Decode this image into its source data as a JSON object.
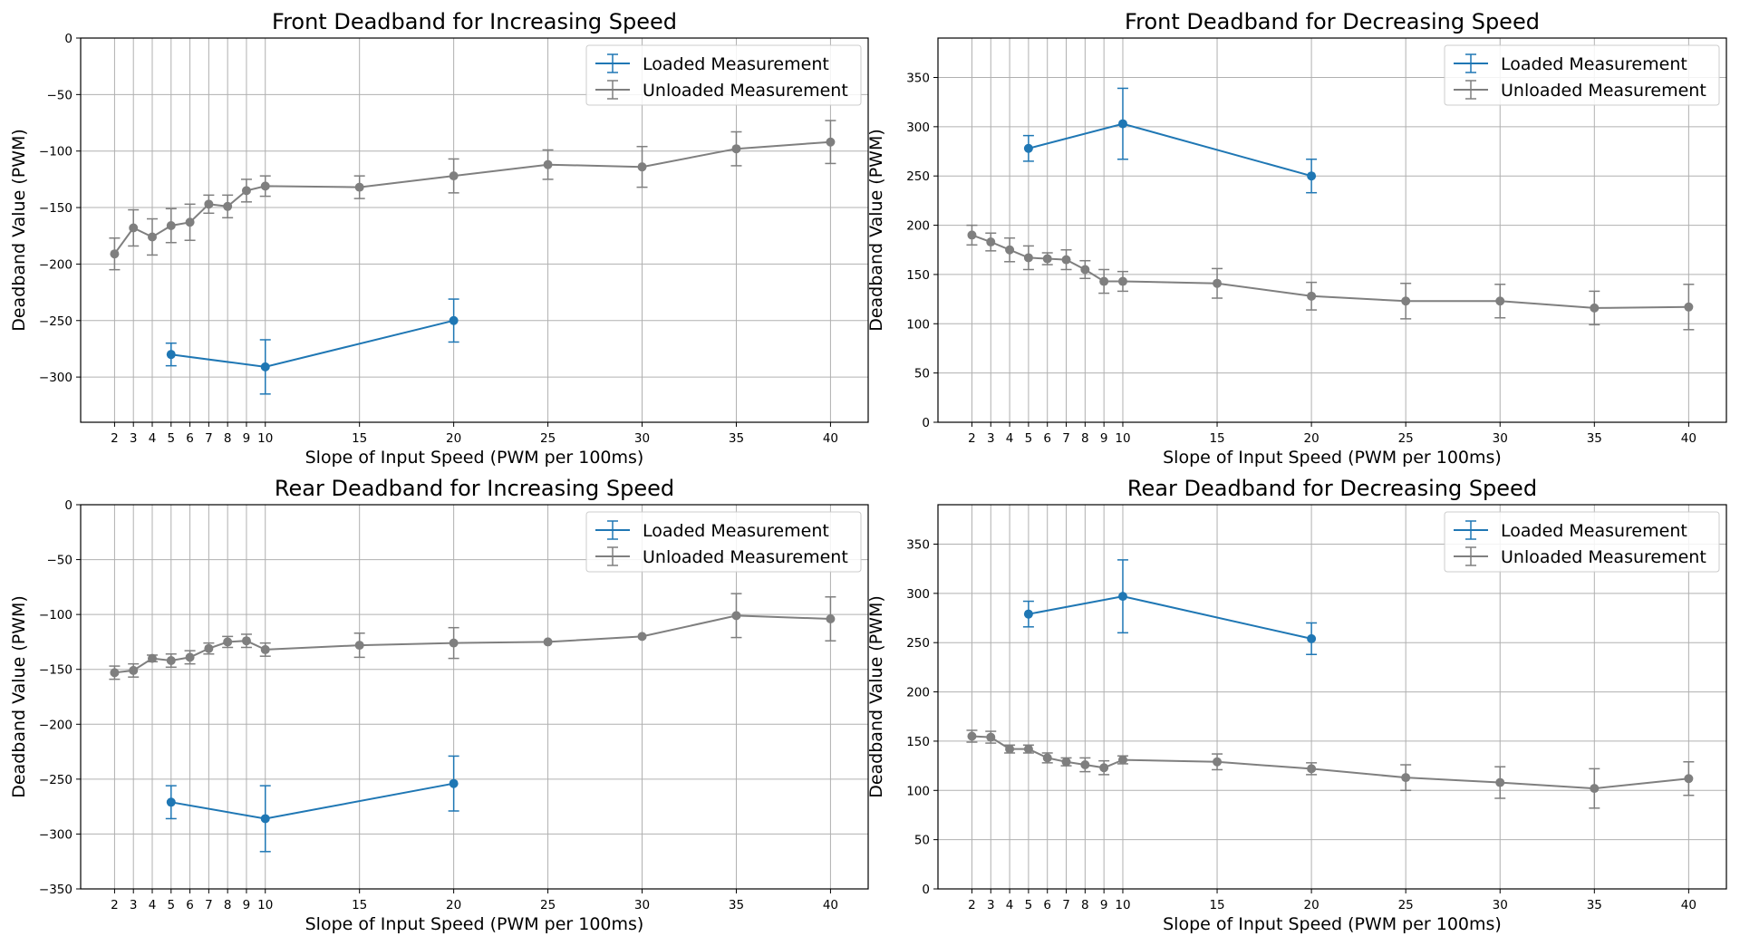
{
  "colors": {
    "loaded": "#1f77b4",
    "unloaded": "#7f7f7f",
    "grid": "#b0b0b0"
  },
  "chart_data": [
    {
      "type": "line",
      "title": "Front Deadband for Increasing Speed",
      "xlabel": "Slope of Input Speed (PWM per 100ms)",
      "ylabel": "Deadband Value (PWM)",
      "xticks": [
        2,
        3,
        4,
        5,
        6,
        7,
        8,
        9,
        10,
        15,
        20,
        25,
        30,
        35,
        40
      ],
      "yticks": [
        0,
        -50,
        -100,
        -150,
        -200,
        -250,
        -300
      ],
      "ytick_labels": [
        "0",
        "−50",
        "−100",
        "−150",
        "−200",
        "−250",
        "−300"
      ],
      "xlim": [
        0.2,
        42.0
      ],
      "ylim": [
        -340,
        0
      ],
      "grid": true,
      "legend_position": "upper right",
      "series": [
        {
          "name": "Loaded Measurement",
          "color": "#1f77b4",
          "x": [
            5,
            10,
            20
          ],
          "y": [
            -280,
            -291,
            -250
          ],
          "err": [
            10,
            24,
            19
          ]
        },
        {
          "name": "Unloaded Measurement",
          "color": "#7f7f7f",
          "x": [
            2,
            3,
            4,
            5,
            6,
            7,
            8,
            9,
            10,
            15,
            20,
            25,
            30,
            35,
            40
          ],
          "y": [
            -191,
            -168,
            -176,
            -166,
            -163,
            -147,
            -149,
            -135,
            -131,
            -132,
            -122,
            -112,
            -114,
            -98,
            -92
          ],
          "err": [
            14,
            16,
            16,
            15,
            16,
            8,
            10,
            10,
            9,
            10,
            15,
            13,
            18,
            15,
            19
          ]
        }
      ]
    },
    {
      "type": "line",
      "title": "Front Deadband for Decreasing Speed",
      "xlabel": "Slope of Input Speed (PWM per 100ms)",
      "ylabel": "Deadband Value (PWM)",
      "xticks": [
        2,
        3,
        4,
        5,
        6,
        7,
        8,
        9,
        10,
        15,
        20,
        25,
        30,
        35,
        40
      ],
      "yticks": [
        0,
        50,
        100,
        150,
        200,
        250,
        300,
        350
      ],
      "ytick_labels": [
        "0",
        "50",
        "100",
        "150",
        "200",
        "250",
        "300",
        "350"
      ],
      "xlim": [
        0.2,
        42.0
      ],
      "ylim": [
        0,
        390
      ],
      "grid": true,
      "legend_position": "upper right",
      "series": [
        {
          "name": "Loaded Measurement",
          "color": "#1f77b4",
          "x": [
            5,
            10,
            20
          ],
          "y": [
            278,
            303,
            250
          ],
          "err": [
            13,
            36,
            17
          ]
        },
        {
          "name": "Unloaded Measurement",
          "color": "#7f7f7f",
          "x": [
            2,
            3,
            4,
            5,
            6,
            7,
            8,
            9,
            10,
            15,
            20,
            25,
            30,
            35,
            40
          ],
          "y": [
            190,
            183,
            175,
            167,
            166,
            165,
            155,
            143,
            143,
            141,
            128,
            123,
            123,
            116,
            117
          ],
          "err": [
            10,
            9,
            12,
            12,
            6,
            10,
            9,
            12,
            10,
            15,
            14,
            18,
            17,
            17,
            23
          ]
        }
      ]
    },
    {
      "type": "line",
      "title": "Rear Deadband for Increasing Speed",
      "xlabel": "Slope of Input Speed (PWM per 100ms)",
      "ylabel": "Deadband Value (PWM)",
      "xticks": [
        2,
        3,
        4,
        5,
        6,
        7,
        8,
        9,
        10,
        15,
        20,
        25,
        30,
        35,
        40
      ],
      "yticks": [
        0,
        -50,
        -100,
        -150,
        -200,
        -250,
        -300,
        -350
      ],
      "ytick_labels": [
        "0",
        "−50",
        "−100",
        "−150",
        "−200",
        "−250",
        "−300",
        "−350"
      ],
      "xlim": [
        0.2,
        42.0
      ],
      "ylim": [
        -350,
        0
      ],
      "grid": true,
      "legend_position": "upper right",
      "series": [
        {
          "name": "Loaded Measurement",
          "color": "#1f77b4",
          "x": [
            5,
            10,
            20
          ],
          "y": [
            -271,
            -286,
            -254
          ],
          "err": [
            15,
            30,
            25
          ]
        },
        {
          "name": "Unloaded Measurement",
          "color": "#7f7f7f",
          "x": [
            2,
            3,
            4,
            5,
            6,
            7,
            8,
            9,
            10,
            15,
            20,
            25,
            30,
            35,
            40
          ],
          "y": [
            -153,
            -151,
            -140,
            -142,
            -139,
            -131,
            -125,
            -124,
            -132,
            -128,
            -126,
            -125,
            -120,
            -101,
            -104
          ],
          "err": [
            6,
            6,
            3,
            6,
            6,
            5,
            5,
            6,
            6,
            11,
            14,
            0,
            0,
            20,
            20
          ]
        }
      ]
    },
    {
      "type": "line",
      "title": "Rear Deadband for Decreasing Speed",
      "xlabel": "Slope of Input Speed (PWM per 100ms)",
      "ylabel": "Deadband Value (PWM)",
      "xticks": [
        2,
        3,
        4,
        5,
        6,
        7,
        8,
        9,
        10,
        15,
        20,
        25,
        30,
        35,
        40
      ],
      "yticks": [
        0,
        50,
        100,
        150,
        200,
        250,
        300,
        350
      ],
      "ytick_labels": [
        "0",
        "50",
        "100",
        "150",
        "200",
        "250",
        "300",
        "350"
      ],
      "xlim": [
        0.2,
        42.0
      ],
      "ylim": [
        0,
        390
      ],
      "grid": true,
      "legend_position": "upper right",
      "series": [
        {
          "name": "Loaded Measurement",
          "color": "#1f77b4",
          "x": [
            5,
            10,
            20
          ],
          "y": [
            279,
            297,
            254
          ],
          "err": [
            13,
            37,
            16
          ]
        },
        {
          "name": "Unloaded Measurement",
          "color": "#7f7f7f",
          "x": [
            2,
            3,
            4,
            5,
            6,
            7,
            8,
            9,
            10,
            15,
            20,
            25,
            30,
            35,
            40
          ],
          "y": [
            155,
            154,
            142,
            142,
            133,
            129,
            126,
            123,
            131,
            129,
            122,
            113,
            108,
            102,
            112
          ],
          "err": [
            6,
            6,
            4,
            4,
            5,
            4,
            7,
            7,
            4,
            8,
            6,
            13,
            16,
            20,
            17
          ]
        }
      ]
    }
  ]
}
